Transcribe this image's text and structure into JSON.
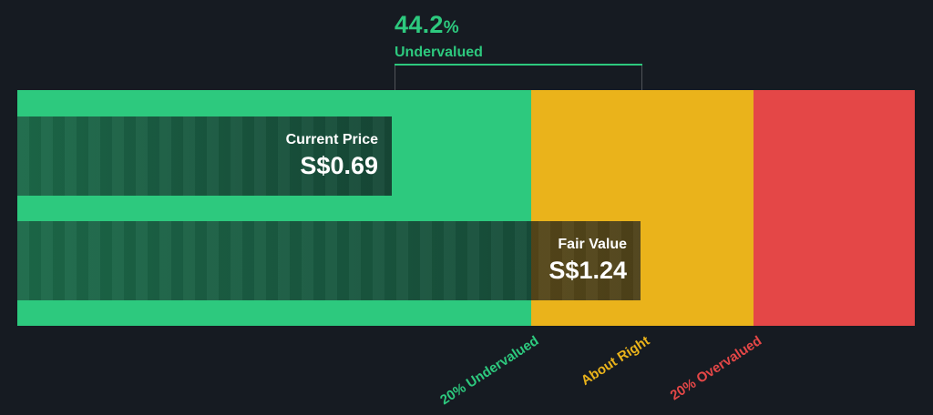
{
  "header": {
    "percent_value": "44.2",
    "percent_sign": "%",
    "status": "Undervalued"
  },
  "bars": {
    "current_price": {
      "label": "Current Price",
      "value": "S$0.69"
    },
    "fair_value": {
      "label": "Fair Value",
      "value": "S$1.24"
    }
  },
  "axis_labels": [
    {
      "label": "20% Undervalued"
    },
    {
      "label": "About Right"
    },
    {
      "label": "20% Overvalued"
    }
  ],
  "colors": {
    "background": "#161b22",
    "green": "#2dc97e",
    "yellow": "#eab31b",
    "red": "#e44747",
    "accent_text": "#2dc97e",
    "white_text": "#ffffff"
  },
  "chart_data": {
    "type": "bar",
    "subtype": "price-vs-fair-value-gauge",
    "title": "44.2% Undervalued",
    "currency": "S$",
    "series": [
      {
        "name": "Current Price",
        "value": 0.69,
        "display": "S$0.69"
      },
      {
        "name": "Fair Value",
        "value": 1.24,
        "display": "S$1.24"
      }
    ],
    "discount_percent": 44.2,
    "zones": [
      {
        "label": "20% Undervalued",
        "color": "#2dc97e",
        "price_max": 0.99
      },
      {
        "label": "About Right",
        "color": "#eab31b",
        "price_min": 0.99,
        "price_max": 1.49
      },
      {
        "label": "20% Overvalued",
        "color": "#e44747",
        "price_min": 1.49
      }
    ],
    "legend_position": "none",
    "grid": false
  }
}
